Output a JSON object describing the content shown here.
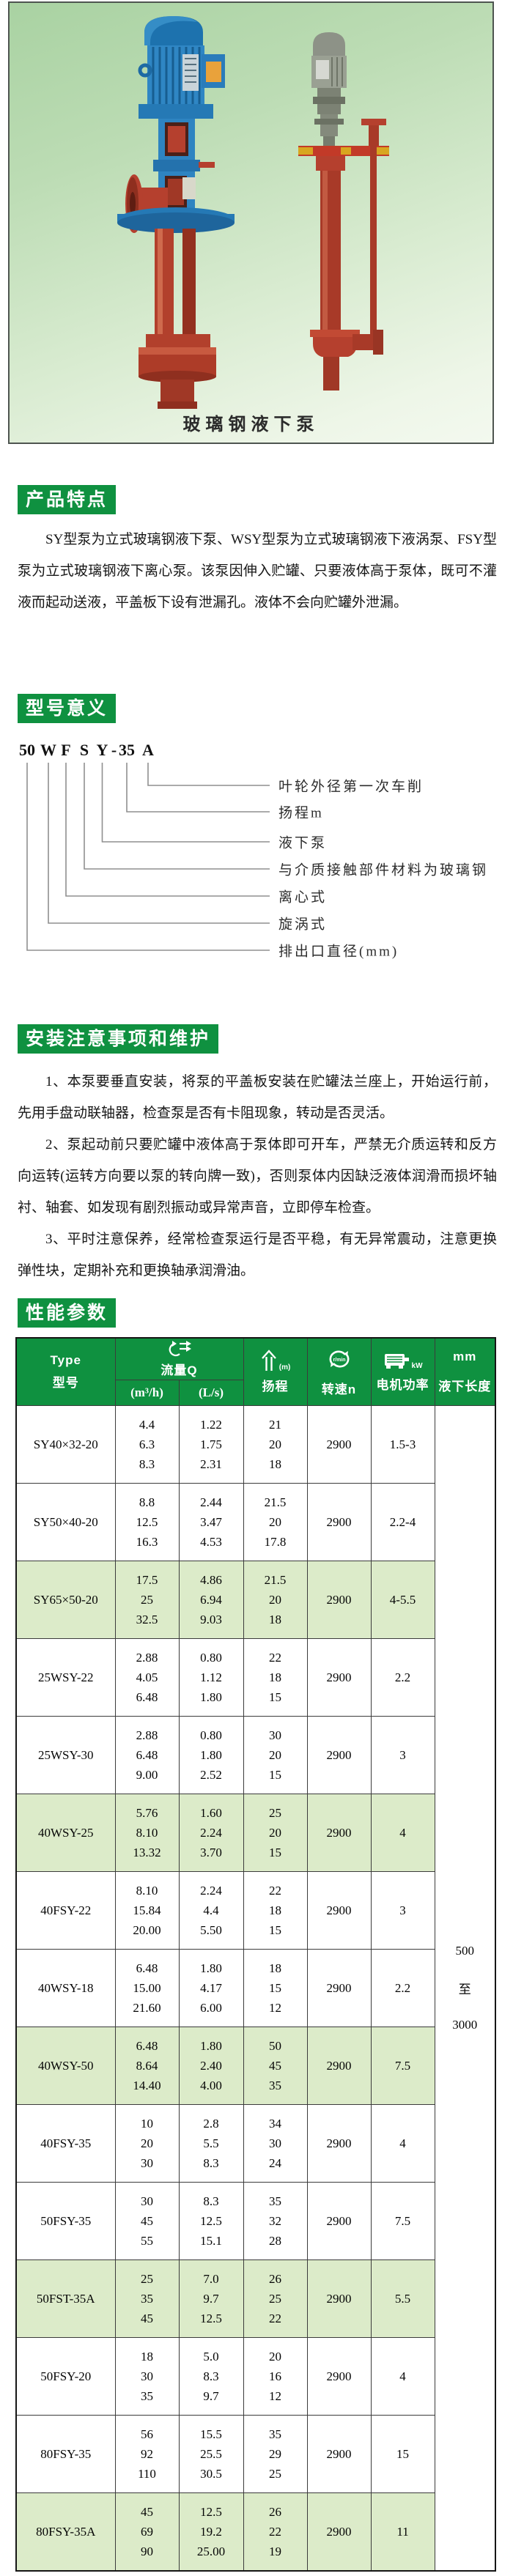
{
  "photo": {
    "caption": "玻璃钢液下泵"
  },
  "sections": {
    "features": {
      "badge": "产品特点",
      "paragraph": "SY型泵为立式玻璃钢液下泵、WSY型泵为立式玻璃钢液下液涡泵、FSY型泵为立式玻璃钢液下离心泵。该泵因伸入贮罐、只要液体高于泵体，既可不灌液而起动送液，平盖板下设有泄漏孔。液体不会向贮罐外泄漏。"
    },
    "model": {
      "badge": "型号意义",
      "code_symbols": [
        "50",
        "W",
        "F",
        "S",
        "Y",
        "-",
        "35",
        "A"
      ],
      "branches": [
        {
          "symbol": "A",
          "label": "叶轮外径第一次车削"
        },
        {
          "symbol": "35",
          "label": "扬程m"
        },
        {
          "symbol": "Y",
          "label": "液下泵"
        },
        {
          "symbol": "S",
          "label": "与介质接触部件材料为玻璃钢"
        },
        {
          "symbol": "F",
          "label": "离心式"
        },
        {
          "symbol": "W",
          "label": "旋涡式"
        },
        {
          "symbol": "50",
          "label": "排出口直径(mm)"
        }
      ]
    },
    "install": {
      "badge": "安装注意事项和维护",
      "paragraphs": [
        "1、本泵要垂直安装，将泵的平盖板安装在贮罐法兰座上，开始运行前，先用手盘动联轴器，检查泵是否有卡阻现象，转动是否灵活。",
        "2、泵起动前只要贮罐中液体高于泵体即可开车，严禁无介质运转和反方向运转(运转方向要以泵的转向牌一致)，否则泵体内因缺泛液体润滑而损坏轴衬、轴套、如发现有剧烈振动或异常声音，立即停车检查。",
        "3、平时注意保养，经常检查泵运行是否平稳，有无异常震动，注意更换弹性块，定期补充和更换轴承润滑油。"
      ]
    },
    "performance": {
      "badge": "性能参数"
    }
  },
  "table": {
    "headers": {
      "type_en": "Type",
      "type_zh": "型号",
      "flow_label": "流量Q",
      "flow_unit_m3h": "(m³/h)",
      "flow_unit_ls": "(L/s)",
      "head_unit": "(m)",
      "head_label": "扬程",
      "speed_unit": "r/min",
      "speed_label": "转速n",
      "power_unit": "kW",
      "power_label": "电机功率",
      "length_unit": "mm",
      "length_label": "液下长度"
    },
    "length_range": [
      "500",
      "至",
      "3000"
    ],
    "rows": [
      {
        "type": "SY40×32-20",
        "q_m3h": [
          "4.4",
          "6.3",
          "8.3"
        ],
        "q_ls": [
          "1.22",
          "1.75",
          "2.31"
        ],
        "head": [
          "21",
          "20",
          "18"
        ],
        "speed": "2900",
        "power": "1.5-3",
        "green": false
      },
      {
        "type": "SY50×40-20",
        "q_m3h": [
          "8.8",
          "12.5",
          "16.3"
        ],
        "q_ls": [
          "2.44",
          "3.47",
          "4.53"
        ],
        "head": [
          "21.5",
          "20",
          "17.8"
        ],
        "speed": "2900",
        "power": "2.2-4",
        "green": false
      },
      {
        "type": "SY65×50-20",
        "q_m3h": [
          "17.5",
          "25",
          "32.5"
        ],
        "q_ls": [
          "4.86",
          "6.94",
          "9.03"
        ],
        "head": [
          "21.5",
          "20",
          "18"
        ],
        "speed": "2900",
        "power": "4-5.5",
        "green": true
      },
      {
        "type": "25WSY-22",
        "q_m3h": [
          "2.88",
          "4.05",
          "6.48"
        ],
        "q_ls": [
          "0.80",
          "1.12",
          "1.80"
        ],
        "head": [
          "22",
          "18",
          "15"
        ],
        "speed": "2900",
        "power": "2.2",
        "green": false
      },
      {
        "type": "25WSY-30",
        "q_m3h": [
          "2.88",
          "6.48",
          "9.00"
        ],
        "q_ls": [
          "0.80",
          "1.80",
          "2.52"
        ],
        "head": [
          "30",
          "20",
          "15"
        ],
        "speed": "2900",
        "power": "3",
        "green": false
      },
      {
        "type": "40WSY-25",
        "q_m3h": [
          "5.76",
          "8.10",
          "13.32"
        ],
        "q_ls": [
          "1.60",
          "2.24",
          "3.70"
        ],
        "head": [
          "25",
          "20",
          "15"
        ],
        "speed": "2900",
        "power": "4",
        "green": true
      },
      {
        "type": "40FSY-22",
        "q_m3h": [
          "8.10",
          "15.84",
          "20.00"
        ],
        "q_ls": [
          "2.24",
          "4.4",
          "5.50"
        ],
        "head": [
          "22",
          "18",
          "15"
        ],
        "speed": "2900",
        "power": "3",
        "green": false
      },
      {
        "type": "40WSY-18",
        "q_m3h": [
          "6.48",
          "15.00",
          "21.60"
        ],
        "q_ls": [
          "1.80",
          "4.17",
          "6.00"
        ],
        "head": [
          "18",
          "15",
          "12"
        ],
        "speed": "2900",
        "power": "2.2",
        "green": false
      },
      {
        "type": "40WSY-50",
        "q_m3h": [
          "6.48",
          "8.64",
          "14.40"
        ],
        "q_ls": [
          "1.80",
          "2.40",
          "4.00"
        ],
        "head": [
          "50",
          "45",
          "35"
        ],
        "speed": "2900",
        "power": "7.5",
        "green": true
      },
      {
        "type": "40FSY-35",
        "q_m3h": [
          "10",
          "20",
          "30"
        ],
        "q_ls": [
          "2.8",
          "5.5",
          "8.3"
        ],
        "head": [
          "34",
          "30",
          "24"
        ],
        "speed": "2900",
        "power": "4",
        "green": false
      },
      {
        "type": "50FSY-35",
        "q_m3h": [
          "30",
          "45",
          "55"
        ],
        "q_ls": [
          "8.3",
          "12.5",
          "15.1"
        ],
        "head": [
          "35",
          "32",
          "28"
        ],
        "speed": "2900",
        "power": "7.5",
        "green": false
      },
      {
        "type": "50FST-35A",
        "q_m3h": [
          "25",
          "35",
          "45"
        ],
        "q_ls": [
          "7.0",
          "9.7",
          "12.5"
        ],
        "head": [
          "26",
          "25",
          "22"
        ],
        "speed": "2900",
        "power": "5.5",
        "green": true
      },
      {
        "type": "50FSY-20",
        "q_m3h": [
          "18",
          "30",
          "35"
        ],
        "q_ls": [
          "5.0",
          "8.3",
          "9.7"
        ],
        "head": [
          "20",
          "16",
          "12"
        ],
        "speed": "2900",
        "power": "4",
        "green": false
      },
      {
        "type": "80FSY-35",
        "q_m3h": [
          "56",
          "92",
          "110"
        ],
        "q_ls": [
          "15.5",
          "25.5",
          "30.5"
        ],
        "head": [
          "35",
          "29",
          "25"
        ],
        "speed": "2900",
        "power": "15",
        "green": false
      },
      {
        "type": "80FSY-35A",
        "q_m3h": [
          "45",
          "69",
          "90"
        ],
        "q_ls": [
          "12.5",
          "19.2",
          "25.00"
        ],
        "head": [
          "26",
          "22",
          "19"
        ],
        "speed": "2900",
        "power": "11",
        "green": true
      }
    ]
  }
}
